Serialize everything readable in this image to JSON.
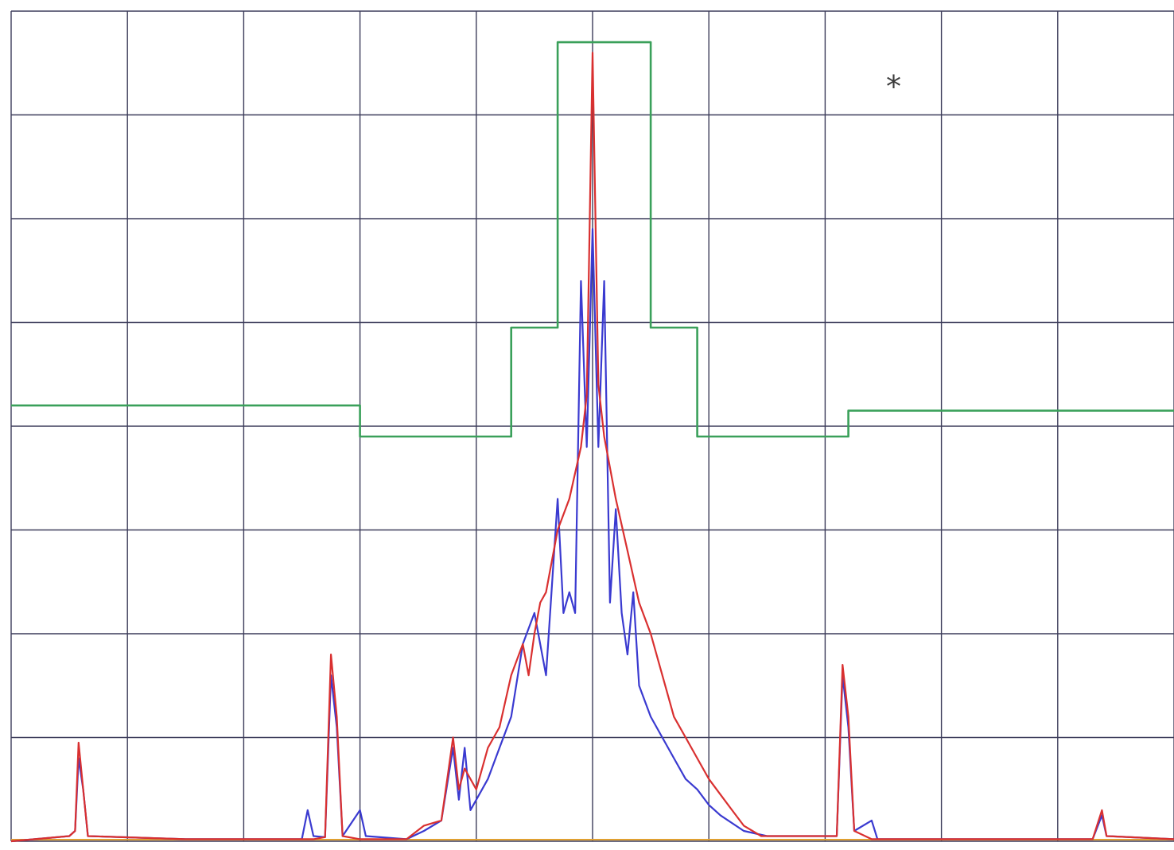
{
  "chart_data": {
    "type": "line",
    "title": "",
    "xlabel": "",
    "ylabel": "",
    "xlim": [
      0,
      10
    ],
    "ylim": [
      0,
      8
    ],
    "grid": true,
    "legend": "none",
    "annotations": [
      {
        "text": "*",
        "x": 7.6,
        "y": 7.6
      }
    ],
    "series": [
      {
        "color": "#d93030",
        "style": "trace",
        "points": [
          [
            0,
            0
          ],
          [
            0.5,
            0.05
          ],
          [
            0.55,
            0.1
          ],
          [
            0.58,
            0.95
          ],
          [
            0.62,
            0.5
          ],
          [
            0.66,
            0.05
          ],
          [
            1.5,
            0.02
          ],
          [
            2.6,
            0.02
          ],
          [
            2.7,
            0.04
          ],
          [
            2.75,
            1.8
          ],
          [
            2.8,
            1.2
          ],
          [
            2.85,
            0.05
          ],
          [
            3,
            0.02
          ],
          [
            3.4,
            0.02
          ],
          [
            3.55,
            0.15
          ],
          [
            3.7,
            0.2
          ],
          [
            3.75,
            0.6
          ],
          [
            3.8,
            1.0
          ],
          [
            3.85,
            0.5
          ],
          [
            3.9,
            0.7
          ],
          [
            4.0,
            0.5
          ],
          [
            4.1,
            0.9
          ],
          [
            4.2,
            1.1
          ],
          [
            4.3,
            1.6
          ],
          [
            4.4,
            1.9
          ],
          [
            4.45,
            1.6
          ],
          [
            4.5,
            2.0
          ],
          [
            4.55,
            2.3
          ],
          [
            4.6,
            2.4
          ],
          [
            4.7,
            3.0
          ],
          [
            4.8,
            3.3
          ],
          [
            4.9,
            3.8
          ],
          [
            4.95,
            4.3
          ],
          [
            5.0,
            7.6
          ],
          [
            5.05,
            4.4
          ],
          [
            5.1,
            3.9
          ],
          [
            5.2,
            3.3
          ],
          [
            5.3,
            2.8
          ],
          [
            5.4,
            2.3
          ],
          [
            5.5,
            2.0
          ],
          [
            5.6,
            1.6
          ],
          [
            5.7,
            1.2
          ],
          [
            5.8,
            1.0
          ],
          [
            5.9,
            0.8
          ],
          [
            6.0,
            0.6
          ],
          [
            6.1,
            0.45
          ],
          [
            6.2,
            0.3
          ],
          [
            6.3,
            0.15
          ],
          [
            6.45,
            0.05
          ],
          [
            6.9,
            0.05
          ],
          [
            7.1,
            0.05
          ],
          [
            7.15,
            1.7
          ],
          [
            7.2,
            1.2
          ],
          [
            7.25,
            0.1
          ],
          [
            7.4,
            0.02
          ],
          [
            9.3,
            0.02
          ],
          [
            9.38,
            0.3
          ],
          [
            9.42,
            0.05
          ],
          [
            10,
            0.02
          ]
        ]
      },
      {
        "color": "#3a3ad0",
        "style": "trace",
        "points": [
          [
            0,
            0
          ],
          [
            0.5,
            0.05
          ],
          [
            0.55,
            0.1
          ],
          [
            0.58,
            0.8
          ],
          [
            0.62,
            0.5
          ],
          [
            0.66,
            0.05
          ],
          [
            1.5,
            0.02
          ],
          [
            2.5,
            0.02
          ],
          [
            2.55,
            0.3
          ],
          [
            2.6,
            0.05
          ],
          [
            2.7,
            0.04
          ],
          [
            2.75,
            1.6
          ],
          [
            2.8,
            1.1
          ],
          [
            2.85,
            0.05
          ],
          [
            3.0,
            0.3
          ],
          [
            3.05,
            0.05
          ],
          [
            3.4,
            0.02
          ],
          [
            3.55,
            0.1
          ],
          [
            3.7,
            0.2
          ],
          [
            3.8,
            0.9
          ],
          [
            3.85,
            0.4
          ],
          [
            3.9,
            0.9
          ],
          [
            3.95,
            0.3
          ],
          [
            4.1,
            0.6
          ],
          [
            4.2,
            0.9
          ],
          [
            4.3,
            1.2
          ],
          [
            4.4,
            1.9
          ],
          [
            4.5,
            2.2
          ],
          [
            4.6,
            1.6
          ],
          [
            4.7,
            3.3
          ],
          [
            4.75,
            2.2
          ],
          [
            4.8,
            2.4
          ],
          [
            4.85,
            2.2
          ],
          [
            4.9,
            5.4
          ],
          [
            4.95,
            3.8
          ],
          [
            5.0,
            5.9
          ],
          [
            5.05,
            3.8
          ],
          [
            5.1,
            5.4
          ],
          [
            5.15,
            2.3
          ],
          [
            5.2,
            3.2
          ],
          [
            5.25,
            2.2
          ],
          [
            5.3,
            1.8
          ],
          [
            5.35,
            2.4
          ],
          [
            5.4,
            1.5
          ],
          [
            5.5,
            1.2
          ],
          [
            5.6,
            1.0
          ],
          [
            5.7,
            0.8
          ],
          [
            5.8,
            0.6
          ],
          [
            5.9,
            0.5
          ],
          [
            6.0,
            0.35
          ],
          [
            6.1,
            0.25
          ],
          [
            6.3,
            0.1
          ],
          [
            6.5,
            0.05
          ],
          [
            7.05,
            0.05
          ],
          [
            7.1,
            0.05
          ],
          [
            7.15,
            1.6
          ],
          [
            7.2,
            1.1
          ],
          [
            7.25,
            0.1
          ],
          [
            7.4,
            0.2
          ],
          [
            7.45,
            0.02
          ],
          [
            9.3,
            0.02
          ],
          [
            9.38,
            0.25
          ],
          [
            9.42,
            0.05
          ],
          [
            10,
            0.02
          ]
        ]
      },
      {
        "color": "#3aa05a",
        "style": "step",
        "points": [
          [
            0,
            4.2
          ],
          [
            3.0,
            4.2
          ],
          [
            3.0,
            3.9
          ],
          [
            4.3,
            3.9
          ],
          [
            4.3,
            4.95
          ],
          [
            4.7,
            4.95
          ],
          [
            4.7,
            7.7
          ],
          [
            5.5,
            7.7
          ],
          [
            5.5,
            4.95
          ],
          [
            5.9,
            4.95
          ],
          [
            5.9,
            3.9
          ],
          [
            7.2,
            3.9
          ],
          [
            7.2,
            4.15
          ],
          [
            10,
            4.15
          ]
        ]
      }
    ]
  }
}
